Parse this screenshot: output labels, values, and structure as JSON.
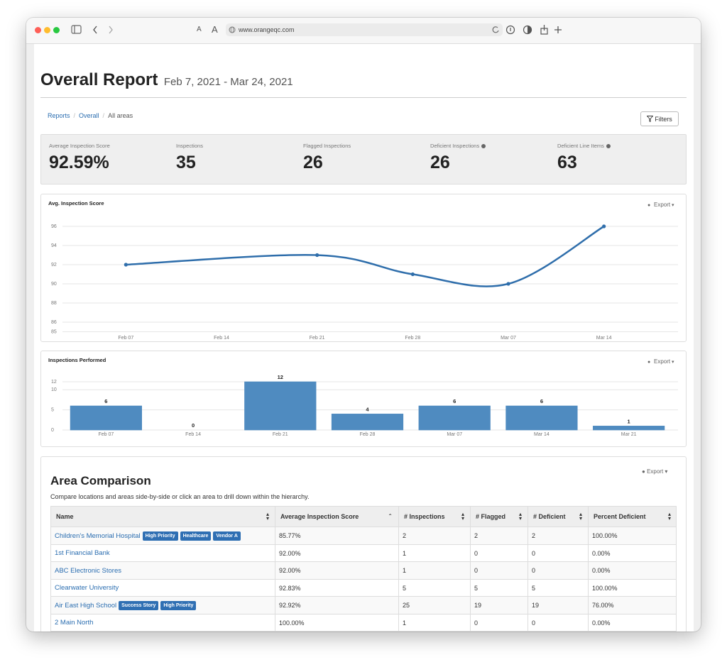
{
  "browser": {
    "url": "www.orangeqc.com"
  },
  "header": {
    "title": "Overall Report",
    "date_range": "Feb 7, 2021 - Mar 24, 2021"
  },
  "breadcrumb": [
    "Reports",
    "Overall",
    "All areas"
  ],
  "filters_button": "Filters",
  "stats": [
    {
      "label": "Average Inspection Score",
      "value": "92.59%"
    },
    {
      "label": "Inspections",
      "value": "35"
    },
    {
      "label": "Flagged Inspections",
      "value": "26"
    },
    {
      "label": "Deficient Inspections",
      "value": "26",
      "info_icon": true
    },
    {
      "label": "Deficient Line Items",
      "value": "63",
      "info_icon": true
    }
  ],
  "chart_data": [
    {
      "type": "line",
      "title": "Avg. Inspection Score",
      "export": "Export",
      "categories": [
        "Feb 07",
        "Feb 14",
        "Feb 21",
        "Feb 28",
        "Mar 07",
        "Mar 14"
      ],
      "values": [
        92,
        null,
        93,
        91,
        90,
        96
      ],
      "color": "#2f6eab",
      "connect_gaps": true,
      "smooth": true,
      "ylim": [
        85,
        96
      ],
      "yticks": [
        85,
        86,
        88,
        90,
        92,
        94,
        96
      ],
      "grid": true
    },
    {
      "type": "bar",
      "title": "Inspections Performed",
      "export": "Export",
      "categories": [
        "Feb 07",
        "Feb 14",
        "Feb 21",
        "Feb 28",
        "Mar 07",
        "Mar 14",
        "Mar 21"
      ],
      "values": [
        6,
        0,
        12,
        4,
        6,
        6,
        1
      ],
      "color": "#4f8bc0",
      "ylim": [
        0,
        12
      ],
      "yticks": [
        0,
        5,
        10,
        12
      ],
      "grid": true
    }
  ],
  "area_comparison": {
    "title": "Area Comparison",
    "description": "Compare locations and areas side-by-side or click an area to drill down within the hierarchy.",
    "export": "Export",
    "sorted_column": 1,
    "columns": [
      "Name",
      "Average Inspection Score",
      "# Inspections",
      "# Flagged",
      "# Deficient",
      "Percent Deficient"
    ],
    "rows": [
      {
        "name": "Children's Memorial Hospital",
        "tags": [
          "High Priority",
          "Healthcare",
          "Vendor A"
        ],
        "cells": [
          "85.77%",
          "2",
          "2",
          "2",
          "100.00%"
        ]
      },
      {
        "name": "1st Financial Bank",
        "tags": [],
        "cells": [
          "92.00%",
          "1",
          "0",
          "0",
          "0.00%"
        ]
      },
      {
        "name": "ABC Electronic Stores",
        "tags": [],
        "cells": [
          "92.00%",
          "1",
          "0",
          "0",
          "0.00%"
        ]
      },
      {
        "name": "Clearwater University",
        "tags": [],
        "cells": [
          "92.83%",
          "5",
          "5",
          "5",
          "100.00%"
        ]
      },
      {
        "name": "Air East High School",
        "tags": [
          "Success Story",
          "High Priority"
        ],
        "cells": [
          "92.92%",
          "25",
          "19",
          "19",
          "76.00%"
        ]
      },
      {
        "name": "2 Main North",
        "tags": [],
        "cells": [
          "100.00%",
          "1",
          "0",
          "0",
          "0.00%"
        ]
      }
    ]
  }
}
